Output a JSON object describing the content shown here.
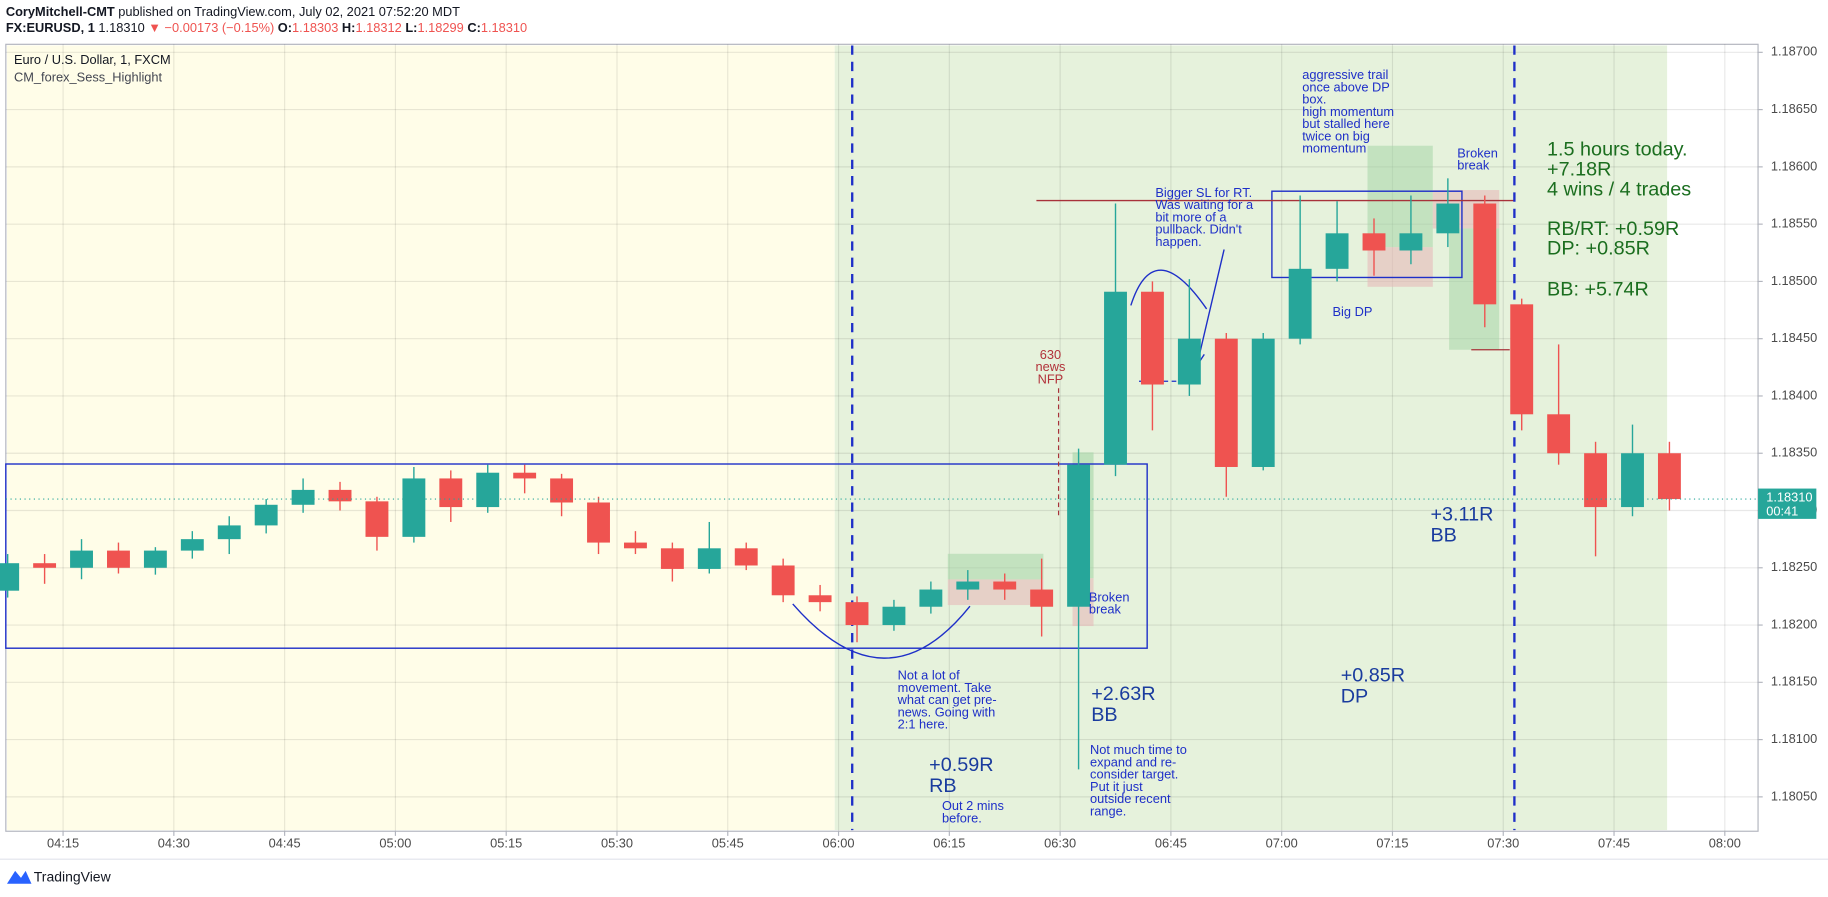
{
  "header": {
    "author": "CoryMitchell-CMT",
    "published": "published on TradingView.com, July 02, 2021 07:52:20 MDT",
    "symbol": "FX:EURUSD, 1",
    "last": "1.18310",
    "change": "▼ −0.00173 (−0.15%)",
    "ohlc": [
      {
        "key": "O:",
        "value": "1.18303"
      },
      {
        "key": "H:",
        "value": "1.18312"
      },
      {
        "key": "L:",
        "value": "1.18299"
      },
      {
        "key": "C:",
        "value": "1.18310"
      }
    ]
  },
  "footer": {
    "brand": "TradingView"
  },
  "chart_data": {
    "type": "candlestick",
    "title": "Euro / U.S. Dollar, 1, FXCM",
    "subtitle": "CM_forex_Sess_Highlight",
    "up_color": "#26a69a",
    "down_color": "#ef5350",
    "xlim": [
      0.45,
      47.9
    ],
    "xticks": [
      {
        "value": 2,
        "label": "04:15"
      },
      {
        "value": 5,
        "label": "04:30"
      },
      {
        "value": 8,
        "label": "04:45"
      },
      {
        "value": 11,
        "label": "05:00"
      },
      {
        "value": 14,
        "label": "05:15"
      },
      {
        "value": 17,
        "label": "05:30"
      },
      {
        "value": 20,
        "label": "05:45"
      },
      {
        "value": 23,
        "label": "06:00"
      },
      {
        "value": 26,
        "label": "06:15"
      },
      {
        "value": 29,
        "label": "06:30"
      },
      {
        "value": 32,
        "label": "06:45"
      },
      {
        "value": 35,
        "label": "07:00"
      },
      {
        "value": 38,
        "label": "07:15"
      },
      {
        "value": 41,
        "label": "07:30"
      },
      {
        "value": 44,
        "label": "07:45"
      },
      {
        "value": 47,
        "label": "08:00"
      }
    ],
    "ylim": [
      1.1802,
      1.18707
    ],
    "yticks": [
      {
        "value": 1.1805,
        "label": "1.18050"
      },
      {
        "value": 1.181,
        "label": "1.18100"
      },
      {
        "value": 1.1815,
        "label": "1.18150"
      },
      {
        "value": 1.182,
        "label": "1.18200"
      },
      {
        "value": 1.1825,
        "label": "1.18250"
      },
      {
        "value": 1.183,
        "label": "1.18300"
      },
      {
        "value": 1.1835,
        "label": "1.18350"
      },
      {
        "value": 1.184,
        "label": "1.18400"
      },
      {
        "value": 1.1845,
        "label": "1.18450"
      },
      {
        "value": 1.185,
        "label": "1.18500"
      },
      {
        "value": 1.1855,
        "label": "1.18550"
      },
      {
        "value": 1.186,
        "label": "1.18600"
      },
      {
        "value": 1.1865,
        "label": "1.18650"
      },
      {
        "value": 1.187,
        "label": "1.18700"
      }
    ],
    "grid": true,
    "last_price": {
      "value": 1.1831,
      "label": "1.18310",
      "countdown": "00:41"
    },
    "candles": [
      {
        "open": 1.1823,
        "high": 1.18262,
        "low": 1.18224,
        "close": 1.18254
      },
      {
        "open": 1.18254,
        "high": 1.18262,
        "low": 1.18236,
        "close": 1.1825
      },
      {
        "open": 1.1825,
        "high": 1.18275,
        "low": 1.1824,
        "close": 1.18265
      },
      {
        "open": 1.18265,
        "high": 1.18272,
        "low": 1.18245,
        "close": 1.1825
      },
      {
        "open": 1.1825,
        "high": 1.18268,
        "low": 1.18244,
        "close": 1.18265
      },
      {
        "open": 1.18265,
        "high": 1.18282,
        "low": 1.18258,
        "close": 1.18275
      },
      {
        "open": 1.18275,
        "high": 1.18295,
        "low": 1.18262,
        "close": 1.18287
      },
      {
        "open": 1.18287,
        "high": 1.1831,
        "low": 1.1828,
        "close": 1.18305
      },
      {
        "open": 1.18305,
        "high": 1.18328,
        "low": 1.18298,
        "close": 1.18318
      },
      {
        "open": 1.18318,
        "high": 1.18325,
        "low": 1.183,
        "close": 1.18308
      },
      {
        "open": 1.18308,
        "high": 1.18312,
        "low": 1.18265,
        "close": 1.18277
      },
      {
        "open": 1.18277,
        "high": 1.18338,
        "low": 1.18272,
        "close": 1.18328
      },
      {
        "open": 1.18328,
        "high": 1.18335,
        "low": 1.1829,
        "close": 1.18303
      },
      {
        "open": 1.18303,
        "high": 1.1834,
        "low": 1.18298,
        "close": 1.18333
      },
      {
        "open": 1.18333,
        "high": 1.1834,
        "low": 1.18315,
        "close": 1.18328
      },
      {
        "open": 1.18328,
        "high": 1.18332,
        "low": 1.18295,
        "close": 1.18307
      },
      {
        "open": 1.18307,
        "high": 1.18312,
        "low": 1.18262,
        "close": 1.18272
      },
      {
        "open": 1.18272,
        "high": 1.18282,
        "low": 1.18262,
        "close": 1.18267
      },
      {
        "open": 1.18267,
        "high": 1.18272,
        "low": 1.18238,
        "close": 1.18249
      },
      {
        "open": 1.18249,
        "high": 1.1829,
        "low": 1.18245,
        "close": 1.18267
      },
      {
        "open": 1.18267,
        "high": 1.18272,
        "low": 1.18248,
        "close": 1.18252
      },
      {
        "open": 1.18252,
        "high": 1.18258,
        "low": 1.1822,
        "close": 1.18226
      },
      {
        "open": 1.18226,
        "high": 1.18235,
        "low": 1.18212,
        "close": 1.1822
      },
      {
        "open": 1.1822,
        "high": 1.18225,
        "low": 1.18185,
        "close": 1.182
      },
      {
        "open": 1.182,
        "high": 1.18222,
        "low": 1.18195,
        "close": 1.18216
      },
      {
        "open": 1.18216,
        "high": 1.18238,
        "low": 1.1821,
        "close": 1.18231
      },
      {
        "open": 1.18231,
        "high": 1.18248,
        "low": 1.18222,
        "close": 1.18238
      },
      {
        "open": 1.18238,
        "high": 1.18245,
        "low": 1.18222,
        "close": 1.18231
      },
      {
        "open": 1.18231,
        "high": 1.18258,
        "low": 1.1819,
        "close": 1.18216
      },
      {
        "open": 1.18216,
        "high": 1.18354,
        "low": 1.18074,
        "close": 1.1834
      },
      {
        "open": 1.1834,
        "high": 1.18568,
        "low": 1.1833,
        "close": 1.18491
      },
      {
        "open": 1.18491,
        "high": 1.185,
        "low": 1.1837,
        "close": 1.1841
      },
      {
        "open": 1.1841,
        "high": 1.18502,
        "low": 1.184,
        "close": 1.1845
      },
      {
        "open": 1.1845,
        "high": 1.18455,
        "low": 1.18312,
        "close": 1.18338
      },
      {
        "open": 1.18338,
        "high": 1.18455,
        "low": 1.18335,
        "close": 1.1845
      },
      {
        "open": 1.1845,
        "high": 1.18575,
        "low": 1.18445,
        "close": 1.18511
      },
      {
        "open": 1.18511,
        "high": 1.1857,
        "low": 1.185,
        "close": 1.18542
      },
      {
        "open": 1.18542,
        "high": 1.18555,
        "low": 1.18505,
        "close": 1.18527
      },
      {
        "open": 1.18527,
        "high": 1.18575,
        "low": 1.18515,
        "close": 1.18542
      },
      {
        "open": 1.18542,
        "high": 1.1859,
        "low": 1.1853,
        "close": 1.18568
      },
      {
        "open": 1.18568,
        "high": 1.18575,
        "low": 1.1846,
        "close": 1.1848
      },
      {
        "open": 1.1848,
        "high": 1.18485,
        "low": 1.1837,
        "close": 1.18384
      },
      {
        "open": 1.18384,
        "high": 1.18445,
        "low": 1.1834,
        "close": 1.1835
      },
      {
        "open": 1.1835,
        "high": 1.1836,
        "low": 1.1826,
        "close": 1.18303
      },
      {
        "open": 1.18303,
        "high": 1.18375,
        "low": 1.18295,
        "close": 1.1835
      },
      {
        "open": 1.1835,
        "high": 1.1836,
        "low": 1.183,
        "close": 1.1831
      }
    ],
    "annotations": [
      {
        "lines": [
          "630",
          "news",
          "NFP"
        ]
      },
      {
        "lines": [
          "Bigger SL for RT.",
          "Was waiting for a",
          "bit more of a",
          "pullback. Didn't",
          "happen."
        ]
      },
      {
        "lines": [
          "aggressive trail",
          "once above DP",
          "box.",
          "high momentum",
          "but stalled here",
          "twice on big",
          "momentum"
        ]
      },
      {
        "lines": [
          "Broken",
          "break"
        ]
      },
      {
        "lines": [
          "Broken",
          "break"
        ]
      },
      {
        "lines": [
          "Big DP"
        ]
      },
      {
        "lines": [
          "Not a lot of",
          "movement. Take",
          "what can get pre-",
          "news. Going with",
          "2:1 here."
        ]
      },
      {
        "lines": [
          "+0.59R",
          "RB"
        ]
      },
      {
        "lines": [
          "Out 2 mins",
          "before."
        ]
      },
      {
        "lines": [
          "+2.63R",
          "BB"
        ]
      },
      {
        "lines": [
          "Not much time to",
          "expand and re-",
          "consider target.",
          "Put it just",
          "outside recent",
          "range."
        ]
      },
      {
        "lines": [
          "+0.85R",
          "DP"
        ]
      },
      {
        "lines": [
          "+3.11R",
          "BB"
        ]
      },
      {
        "lines": [
          "1.5 hours today.",
          "+7.18R",
          "4 wins / 4 trades"
        ]
      },
      {
        "lines": [
          "RB/RT: +0.59R",
          "DP: +0.85R"
        ]
      },
      {
        "lines": [
          "BB: +5.74R"
        ]
      }
    ]
  }
}
